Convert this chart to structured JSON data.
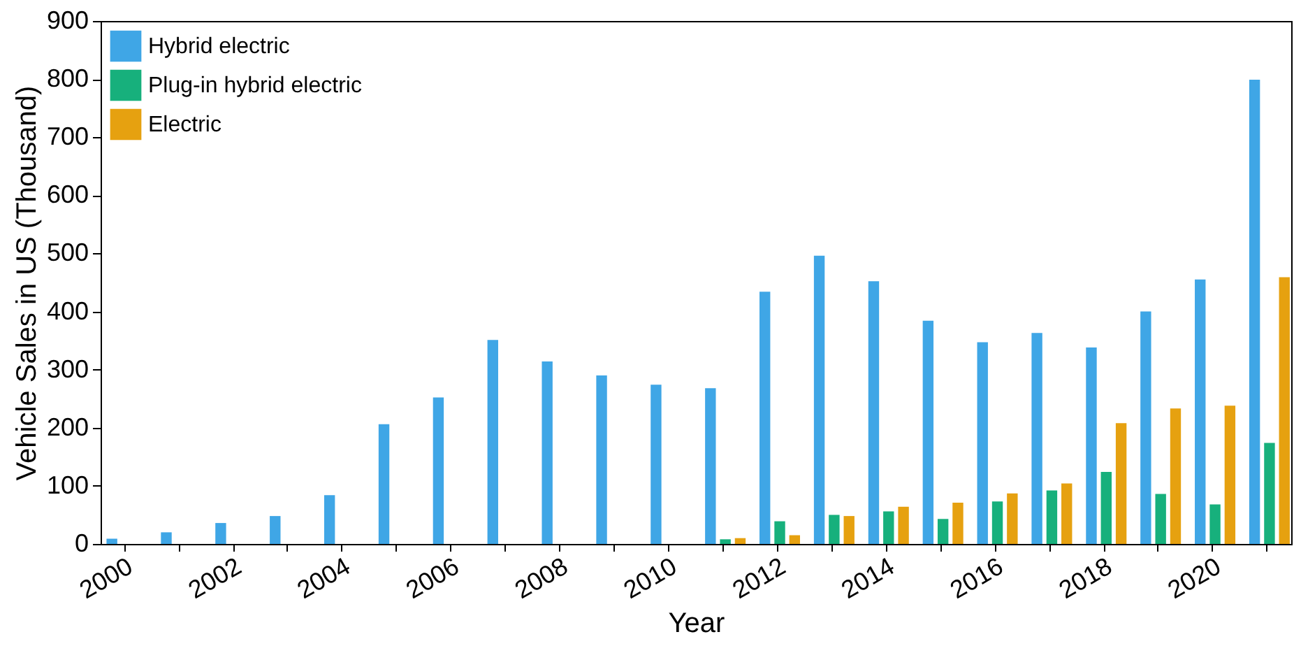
{
  "chart_data": {
    "type": "bar",
    "xlabel": "Year",
    "ylabel": "Vehicle Sales in US (Thousand)",
    "categories": [
      "2000",
      null,
      "2002",
      null,
      "2004",
      null,
      "2006",
      null,
      "2008",
      null,
      "2010",
      null,
      "2012",
      null,
      "2014",
      null,
      "2016",
      null,
      "2018",
      null,
      "2020",
      null
    ],
    "series": [
      {
        "name": "Hybrid electric",
        "color": "#3fa6e6",
        "values": [
          9,
          20,
          36,
          48,
          84,
          206,
          252,
          351,
          314,
          290,
          274,
          268,
          434,
          496,
          452,
          384,
          347,
          363,
          338,
          400,
          455,
          799
        ]
      },
      {
        "name": "Plug-in hybrid electric",
        "color": "#17b07c",
        "values": [
          null,
          null,
          null,
          null,
          null,
          null,
          null,
          null,
          null,
          null,
          null,
          8,
          39,
          50,
          56,
          43,
          73,
          92,
          124,
          86,
          68,
          174
        ]
      },
      {
        "name": "Electric",
        "color": "#e6a110",
        "values": [
          null,
          null,
          null,
          null,
          null,
          null,
          null,
          null,
          null,
          null,
          null,
          10,
          15,
          48,
          64,
          71,
          87,
          104,
          208,
          233,
          238,
          459
        ]
      }
    ],
    "ylim": [
      0,
      900
    ],
    "yticks": [
      0,
      100,
      200,
      300,
      400,
      500,
      600,
      700,
      800,
      900
    ],
    "grid": false,
    "legend": "top left"
  }
}
